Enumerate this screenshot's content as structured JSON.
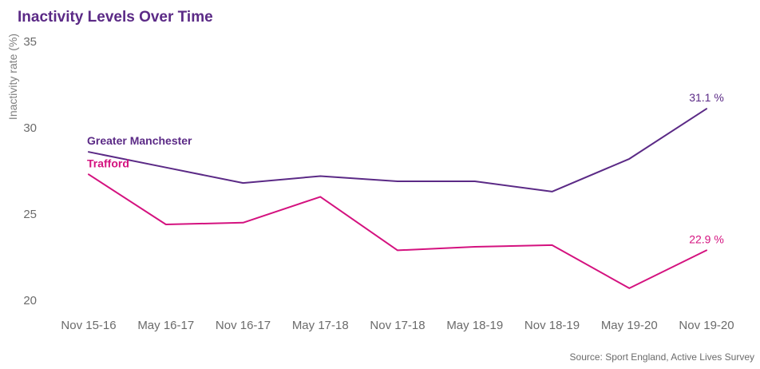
{
  "chart_data": {
    "type": "line",
    "title": "Inactivity Levels Over Time",
    "xlabel": "",
    "ylabel": "Inactivity rate (%)",
    "ylim": [
      20,
      35
    ],
    "yticks": [
      20,
      25,
      30,
      35
    ],
    "categories": [
      "Nov 15-16",
      "May 16-17",
      "Nov 16-17",
      "May 17-18",
      "Nov 17-18",
      "May 18-19",
      "Nov 18-19",
      "May 19-20",
      "Nov 19-20"
    ],
    "series": [
      {
        "name": "Greater Manchester",
        "color": "#5b2a86",
        "values": [
          28.6,
          27.7,
          26.8,
          27.2,
          26.9,
          26.9,
          26.3,
          28.2,
          31.1
        ],
        "end_label": "31.1 %"
      },
      {
        "name": "Trafford",
        "color": "#d4127f",
        "values": [
          27.3,
          24.4,
          24.5,
          26.0,
          22.9,
          23.1,
          23.2,
          20.7,
          22.9
        ],
        "end_label": "22.9 %"
      }
    ],
    "grid": false,
    "legend": "direct-labels",
    "source": "Source: Sport England, Active Lives Survey"
  },
  "colors": {
    "title": "#5b2a86",
    "axis_text": "#6b6b6b",
    "axis_label": "#808080"
  }
}
